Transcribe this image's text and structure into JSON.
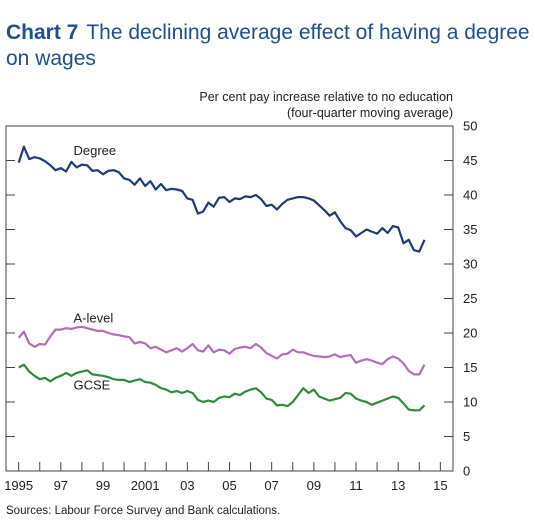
{
  "title": {
    "number": "Chart 7",
    "text": "The declining average effect of having a degree on wages"
  },
  "chart_data": {
    "type": "line",
    "ylabel_line1": "Per cent pay increase relative to no education",
    "ylabel_line2": "(four-quarter moving average)",
    "ylim": [
      0,
      50
    ],
    "yticks": [
      "0",
      "5",
      "10",
      "15",
      "20",
      "25",
      "30",
      "35",
      "40",
      "45",
      "50"
    ],
    "xlim": [
      1994.4,
      2015.6
    ],
    "xticks": [
      {
        "value": 1995,
        "label": "1995"
      },
      {
        "value": 1997,
        "label": "97"
      },
      {
        "value": 1999,
        "label": "99"
      },
      {
        "value": 2001,
        "label": "2001"
      },
      {
        "value": 2003,
        "label": "03"
      },
      {
        "value": 2005,
        "label": "05"
      },
      {
        "value": 2007,
        "label": "07"
      },
      {
        "value": 2009,
        "label": "09"
      },
      {
        "value": 2011,
        "label": "11"
      },
      {
        "value": 2013,
        "label": "13"
      },
      {
        "value": 2015,
        "label": "15"
      }
    ],
    "grid": false,
    "series": [
      {
        "name": "Degree",
        "color": "#1f3a78",
        "label_x": 1997.6,
        "label_y": 45.8,
        "values": [
          44.7,
          47.0,
          45.2,
          45.5,
          45.3,
          44.9,
          44.3,
          43.6,
          43.9,
          43.4,
          44.8,
          44.0,
          44.4,
          44.3,
          43.5,
          43.6,
          43.0,
          43.5,
          43.6,
          43.3,
          42.4,
          42.2,
          41.5,
          42.4,
          41.3,
          42.0,
          40.8,
          41.6,
          40.7,
          40.9,
          40.8,
          40.6,
          39.5,
          39.3,
          37.3,
          37.6,
          38.9,
          38.3,
          39.6,
          39.7,
          39.0,
          39.5,
          39.4,
          39.8,
          39.7,
          40.0,
          39.4,
          38.4,
          38.6,
          37.9,
          38.7,
          39.3,
          39.5,
          39.7,
          39.7,
          39.5,
          39.2,
          38.5,
          37.8,
          37.0,
          37.5,
          36.2,
          35.2,
          34.9,
          34.0,
          34.5,
          35.0,
          34.7,
          34.4,
          35.2,
          34.5,
          35.5,
          35.3,
          33.0,
          33.5,
          32.0,
          31.8,
          33.5
        ]
      },
      {
        "name": "A-level",
        "color": "#b06fb6",
        "label_x": 1997.6,
        "label_y": 21.5,
        "values": [
          19.3,
          20.2,
          18.5,
          18.0,
          18.4,
          18.3,
          19.5,
          20.5,
          20.5,
          20.7,
          20.6,
          20.8,
          20.9,
          20.7,
          20.5,
          20.3,
          20.3,
          20.0,
          19.8,
          19.7,
          19.5,
          19.4,
          18.5,
          18.7,
          18.5,
          17.8,
          18.0,
          17.6,
          17.2,
          17.5,
          17.8,
          17.3,
          17.8,
          18.4,
          17.5,
          17.3,
          18.2,
          17.2,
          17.6,
          17.5,
          17.0,
          17.7,
          17.9,
          18.0,
          17.8,
          18.4,
          17.9,
          17.1,
          16.7,
          16.3,
          16.9,
          17.0,
          17.6,
          17.2,
          17.2,
          16.9,
          16.7,
          16.6,
          16.5,
          16.6,
          16.9,
          16.5,
          16.7,
          16.8,
          15.7,
          16.0,
          16.2,
          16.0,
          15.7,
          15.5,
          16.2,
          16.6,
          16.3,
          15.6,
          14.5,
          14.0,
          14.0,
          15.4
        ]
      },
      {
        "name": "GCSE",
        "color": "#2e8b3e",
        "label_x": 1997.6,
        "label_y": 11.8,
        "values": [
          15.0,
          15.4,
          14.4,
          13.8,
          13.3,
          13.5,
          13.0,
          13.5,
          13.8,
          14.2,
          13.8,
          14.2,
          14.4,
          14.6,
          14.0,
          13.9,
          13.8,
          13.6,
          13.3,
          13.2,
          13.2,
          12.9,
          13.1,
          13.3,
          12.9,
          12.8,
          12.5,
          12.0,
          11.8,
          11.4,
          11.6,
          11.3,
          11.6,
          11.3,
          10.3,
          10.0,
          10.2,
          10.0,
          10.6,
          10.8,
          10.7,
          11.2,
          11.0,
          11.5,
          11.8,
          12.0,
          11.4,
          10.5,
          10.3,
          9.5,
          9.6,
          9.4,
          10.0,
          11.0,
          12.0,
          11.3,
          11.8,
          10.8,
          10.5,
          10.2,
          10.4,
          10.6,
          11.3,
          11.2,
          10.5,
          10.2,
          10.0,
          9.6,
          9.9,
          10.2,
          10.5,
          10.8,
          10.6,
          9.8,
          8.9,
          8.8,
          8.8,
          9.5
        ]
      }
    ]
  },
  "source": "Sources:  Labour Force Survey and Bank calculations."
}
